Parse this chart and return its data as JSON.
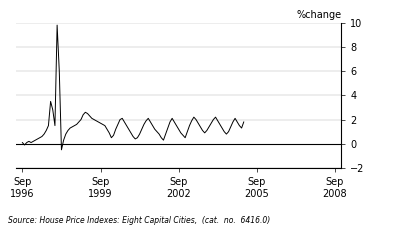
{
  "ylabel": "%change",
  "source_text": "Source: House Price Indexes: Eight Capital Cities,  (cat.  no.  6416.0)",
  "yticks": [
    -2,
    0,
    2,
    4,
    6,
    8,
    10
  ],
  "xtick_labels": [
    "Sep\n1996",
    "Sep\n1999",
    "Sep\n2002",
    "Sep\n2005",
    "Sep\n2008"
  ],
  "xtick_positions": [
    1996.75,
    1999.75,
    2002.75,
    2005.75,
    2008.75
  ],
  "xlim": [
    1996.5,
    2009.0
  ],
  "ylim": [
    -2,
    10
  ],
  "line_color": "#000000",
  "background_color": "#ffffff",
  "values": [
    0.1,
    -0.1,
    0.1,
    0.2,
    0.1,
    0.2,
    0.3,
    0.4,
    0.5,
    0.6,
    0.8,
    1.1,
    1.5,
    3.5,
    2.8,
    1.5,
    9.8,
    6.0,
    -0.5,
    0.3,
    0.8,
    1.1,
    1.3,
    1.4,
    1.5,
    1.6,
    1.8,
    2.0,
    2.4,
    2.6,
    2.5,
    2.3,
    2.1,
    2.0,
    1.9,
    1.8,
    1.7,
    1.6,
    1.5,
    1.2,
    0.9,
    0.5,
    0.7,
    1.2,
    1.6,
    2.0,
    2.1,
    1.8,
    1.5,
    1.2,
    0.9,
    0.6,
    0.4,
    0.5,
    0.8,
    1.2,
    1.6,
    1.9,
    2.1,
    1.8,
    1.5,
    1.2,
    1.0,
    0.8,
    0.5,
    0.3,
    0.8,
    1.3,
    1.8,
    2.1,
    1.8,
    1.5,
    1.2,
    0.9,
    0.7,
    0.5,
    1.0,
    1.5,
    1.9,
    2.2,
    2.0,
    1.7,
    1.4,
    1.1,
    0.9,
    1.1,
    1.4,
    1.7,
    2.0,
    2.2,
    1.9,
    1.6,
    1.3,
    1.0,
    0.8,
    1.0,
    1.4,
    1.8,
    2.1,
    1.8,
    1.5,
    1.3,
    1.8
  ],
  "xlabel_fontsize": 7,
  "ylabel_fontsize": 7,
  "tick_fontsize": 7,
  "source_fontsize": 5.5,
  "linewidth": 0.7
}
